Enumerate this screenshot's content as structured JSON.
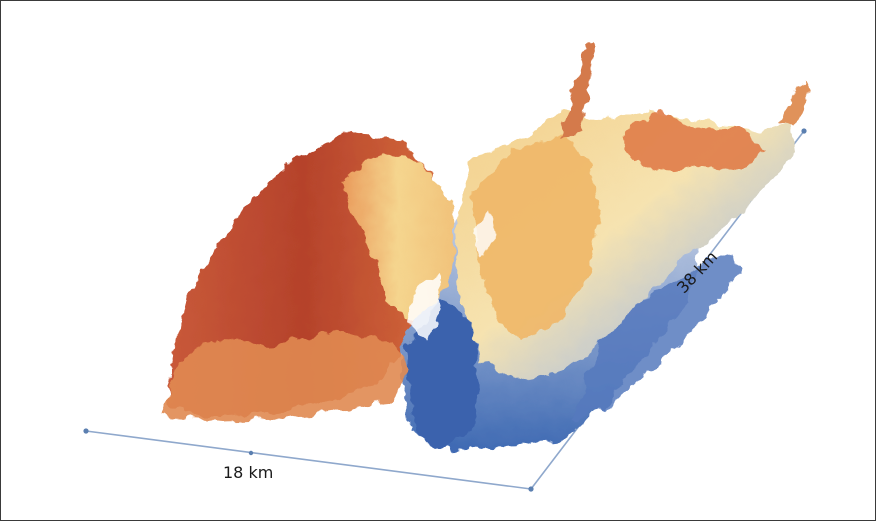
{
  "figure": {
    "x_extent_label": "18 km",
    "y_extent_label": "38 km"
  },
  "colors": {
    "frame_border": "#3a3a3a",
    "baseline": "#8fa8cc",
    "endpoint": "#5b7fb0",
    "terrain_high": "#b5422b",
    "terrain_mid_high": "#e0833f",
    "terrain_mid": "#f5d58e",
    "terrain_low_mid": "#c9d3e6",
    "terrain_low": "#3f6ab3"
  }
}
